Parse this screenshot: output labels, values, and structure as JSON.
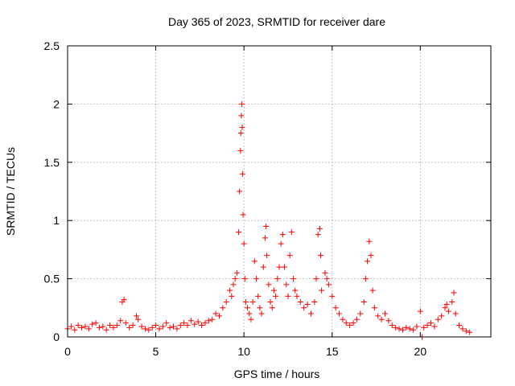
{
  "chart_data": {
    "type": "scatter",
    "title": "Day 365 of 2023, SRMTID for receiver dare",
    "xlabel": "GPS time / hours",
    "ylabel": "SRMTID / TECUs",
    "xlim": [
      0,
      24
    ],
    "ylim": [
      0,
      2.5
    ],
    "xticks": [
      0,
      5,
      10,
      15,
      20
    ],
    "xtick_labels": [
      "0",
      "5",
      "10",
      "15",
      "20"
    ],
    "yticks": [
      0,
      0.5,
      1,
      1.5,
      2,
      2.5
    ],
    "ytick_labels": [
      "0",
      "0.5",
      "1",
      "1.5",
      "2",
      "2.5"
    ],
    "grid": true,
    "marker": "plus",
    "series": [
      {
        "name": "SRMTID",
        "color": "#ff0000",
        "points": [
          [
            0.0,
            0.07
          ],
          [
            0.2,
            0.09
          ],
          [
            0.4,
            0.06
          ],
          [
            0.6,
            0.1
          ],
          [
            0.8,
            0.08
          ],
          [
            1.0,
            0.09
          ],
          [
            1.2,
            0.07
          ],
          [
            1.4,
            0.11
          ],
          [
            1.6,
            0.12
          ],
          [
            1.8,
            0.08
          ],
          [
            2.0,
            0.09
          ],
          [
            2.2,
            0.06
          ],
          [
            2.4,
            0.1
          ],
          [
            2.6,
            0.08
          ],
          [
            2.8,
            0.1
          ],
          [
            3.0,
            0.14
          ],
          [
            3.1,
            0.3
          ],
          [
            3.2,
            0.32
          ],
          [
            3.3,
            0.12
          ],
          [
            3.5,
            0.08
          ],
          [
            3.7,
            0.1
          ],
          [
            3.9,
            0.18
          ],
          [
            4.0,
            0.15
          ],
          [
            4.2,
            0.09
          ],
          [
            4.4,
            0.07
          ],
          [
            4.6,
            0.06
          ],
          [
            4.8,
            0.08
          ],
          [
            5.0,
            0.1
          ],
          [
            5.2,
            0.07
          ],
          [
            5.4,
            0.09
          ],
          [
            5.6,
            0.12
          ],
          [
            5.8,
            0.08
          ],
          [
            6.0,
            0.09
          ],
          [
            6.2,
            0.07
          ],
          [
            6.4,
            0.1
          ],
          [
            6.6,
            0.12
          ],
          [
            6.8,
            0.1
          ],
          [
            7.0,
            0.14
          ],
          [
            7.2,
            0.11
          ],
          [
            7.4,
            0.13
          ],
          [
            7.6,
            0.1
          ],
          [
            7.8,
            0.12
          ],
          [
            8.0,
            0.14
          ],
          [
            8.2,
            0.15
          ],
          [
            8.4,
            0.2
          ],
          [
            8.6,
            0.18
          ],
          [
            8.8,
            0.25
          ],
          [
            9.0,
            0.3
          ],
          [
            9.2,
            0.4
          ],
          [
            9.3,
            0.35
          ],
          [
            9.4,
            0.45
          ],
          [
            9.5,
            0.5
          ],
          [
            9.6,
            0.55
          ],
          [
            9.7,
            0.9
          ],
          [
            9.75,
            1.25
          ],
          [
            9.8,
            1.6
          ],
          [
            9.82,
            1.75
          ],
          [
            9.85,
            1.9
          ],
          [
            9.88,
            2.0
          ],
          [
            9.9,
            1.8
          ],
          [
            9.92,
            1.4
          ],
          [
            9.95,
            1.05
          ],
          [
            10.0,
            0.8
          ],
          [
            10.05,
            0.5
          ],
          [
            10.1,
            0.3
          ],
          [
            10.2,
            0.25
          ],
          [
            10.3,
            0.2
          ],
          [
            10.4,
            0.15
          ],
          [
            10.5,
            0.3
          ],
          [
            10.6,
            0.65
          ],
          [
            10.7,
            0.5
          ],
          [
            10.8,
            0.35
          ],
          [
            10.9,
            0.25
          ],
          [
            11.0,
            0.2
          ],
          [
            11.1,
            0.6
          ],
          [
            11.2,
            0.85
          ],
          [
            11.25,
            0.95
          ],
          [
            11.3,
            0.7
          ],
          [
            11.4,
            0.45
          ],
          [
            11.5,
            0.3
          ],
          [
            11.6,
            0.25
          ],
          [
            11.7,
            0.4
          ],
          [
            11.8,
            0.35
          ],
          [
            11.9,
            0.5
          ],
          [
            12.0,
            0.6
          ],
          [
            12.1,
            0.8
          ],
          [
            12.2,
            0.88
          ],
          [
            12.3,
            0.6
          ],
          [
            12.4,
            0.45
          ],
          [
            12.5,
            0.35
          ],
          [
            12.6,
            0.7
          ],
          [
            12.7,
            0.9
          ],
          [
            12.8,
            0.5
          ],
          [
            12.9,
            0.4
          ],
          [
            13.0,
            0.35
          ],
          [
            13.2,
            0.3
          ],
          [
            13.4,
            0.25
          ],
          [
            13.6,
            0.28
          ],
          [
            13.8,
            0.2
          ],
          [
            14.0,
            0.3
          ],
          [
            14.1,
            0.5
          ],
          [
            14.2,
            0.88
          ],
          [
            14.3,
            0.93
          ],
          [
            14.35,
            0.7
          ],
          [
            14.4,
            0.4
          ],
          [
            14.6,
            0.55
          ],
          [
            14.7,
            0.5
          ],
          [
            14.8,
            0.45
          ],
          [
            15.0,
            0.35
          ],
          [
            15.2,
            0.25
          ],
          [
            15.4,
            0.2
          ],
          [
            15.6,
            0.15
          ],
          [
            15.8,
            0.12
          ],
          [
            16.0,
            0.1
          ],
          [
            16.2,
            0.12
          ],
          [
            16.4,
            0.15
          ],
          [
            16.6,
            0.2
          ],
          [
            16.8,
            0.3
          ],
          [
            16.9,
            0.5
          ],
          [
            17.0,
            0.65
          ],
          [
            17.1,
            0.82
          ],
          [
            17.2,
            0.7
          ],
          [
            17.3,
            0.4
          ],
          [
            17.4,
            0.25
          ],
          [
            17.6,
            0.18
          ],
          [
            17.8,
            0.15
          ],
          [
            18.0,
            0.2
          ],
          [
            18.2,
            0.14
          ],
          [
            18.4,
            0.1
          ],
          [
            18.6,
            0.08
          ],
          [
            18.8,
            0.07
          ],
          [
            19.0,
            0.06
          ],
          [
            19.2,
            0.08
          ],
          [
            19.4,
            0.07
          ],
          [
            19.6,
            0.06
          ],
          [
            19.8,
            0.09
          ],
          [
            20.0,
            0.22
          ],
          [
            20.1,
            0.0
          ],
          [
            20.2,
            0.08
          ],
          [
            20.4,
            0.1
          ],
          [
            20.6,
            0.12
          ],
          [
            20.8,
            0.09
          ],
          [
            21.0,
            0.15
          ],
          [
            21.2,
            0.18
          ],
          [
            21.4,
            0.25
          ],
          [
            21.5,
            0.28
          ],
          [
            21.6,
            0.22
          ],
          [
            21.8,
            0.3
          ],
          [
            21.9,
            0.38
          ],
          [
            22.0,
            0.2
          ],
          [
            22.2,
            0.1
          ],
          [
            22.4,
            0.07
          ],
          [
            22.6,
            0.05
          ],
          [
            22.8,
            0.04
          ]
        ]
      }
    ]
  }
}
